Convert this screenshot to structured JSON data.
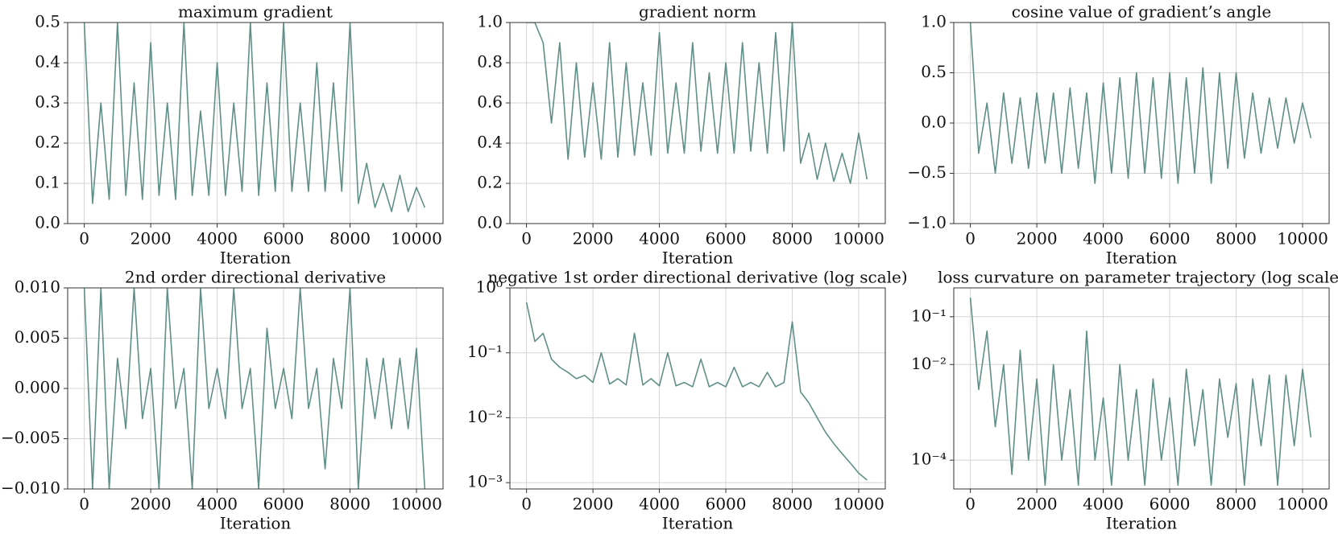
{
  "chart_data": [
    {
      "type": "line",
      "title": "maximum gradient",
      "x_label": "Iteration",
      "color": "#5f8f87",
      "grid": true,
      "xlim": [
        -500,
        10800
      ],
      "xticks": [
        0,
        2000,
        4000,
        6000,
        8000,
        10000
      ],
      "ylim": [
        0,
        0.5
      ],
      "yticks": [
        {
          "value": 0,
          "label": "0.0"
        },
        0.1,
        0.2,
        0.3,
        0.4,
        0.5
      ],
      "x": [
        0,
        250,
        500,
        750,
        1000,
        1250,
        1500,
        1750,
        2000,
        2250,
        2500,
        2750,
        3000,
        3250,
        3500,
        3750,
        4000,
        4250,
        4500,
        4750,
        5000,
        5250,
        5500,
        5750,
        6000,
        6250,
        6500,
        6750,
        7000,
        7250,
        7500,
        7750,
        8000,
        8250,
        8500,
        8750,
        9000,
        9250,
        9500,
        9750,
        10000,
        10250
      ],
      "values": [
        0.5,
        0.05,
        0.3,
        0.06,
        0.5,
        0.07,
        0.35,
        0.06,
        0.45,
        0.07,
        0.3,
        0.06,
        0.5,
        0.07,
        0.28,
        0.07,
        0.4,
        0.07,
        0.3,
        0.08,
        0.5,
        0.07,
        0.35,
        0.08,
        0.5,
        0.08,
        0.3,
        0.08,
        0.4,
        0.08,
        0.35,
        0.08,
        0.5,
        0.05,
        0.15,
        0.04,
        0.1,
        0.03,
        0.12,
        0.03,
        0.09,
        0.04
      ]
    },
    {
      "type": "line",
      "title": "gradient norm",
      "x_label": "Iteration",
      "color": "#5f8f87",
      "grid": true,
      "xlim": [
        -500,
        10800
      ],
      "xticks": [
        0,
        2000,
        4000,
        6000,
        8000,
        10000
      ],
      "ylim": [
        0,
        1
      ],
      "yticks": [
        {
          "value": 0,
          "label": "0.0"
        },
        0.2,
        0.4,
        0.6,
        0.8,
        {
          "value": 1,
          "label": "1.0"
        }
      ],
      "x": [
        0,
        250,
        500,
        750,
        1000,
        1250,
        1500,
        1750,
        2000,
        2250,
        2500,
        2750,
        3000,
        3250,
        3500,
        3750,
        4000,
        4250,
        4500,
        4750,
        5000,
        5250,
        5500,
        5750,
        6000,
        6250,
        6500,
        6750,
        7000,
        7250,
        7500,
        7750,
        8000,
        8250,
        8500,
        8750,
        9000,
        9250,
        9500,
        9750,
        10000,
        10250
      ],
      "values": [
        1,
        1,
        0.9,
        0.5,
        0.9,
        0.32,
        0.8,
        0.33,
        0.7,
        0.32,
        0.9,
        0.33,
        0.8,
        0.34,
        0.7,
        0.34,
        0.95,
        0.35,
        0.7,
        0.35,
        0.9,
        0.36,
        0.75,
        0.35,
        0.8,
        0.35,
        0.9,
        0.36,
        0.8,
        0.35,
        0.95,
        0.36,
        1,
        0.3,
        0.45,
        0.22,
        0.4,
        0.21,
        0.35,
        0.2,
        0.45,
        0.22
      ]
    },
    {
      "type": "line",
      "title": "cosine value of gradient’s angle",
      "x_label": "Iteration",
      "color": "#5f8f87",
      "grid": true,
      "xlim": [
        -500,
        10800
      ],
      "xticks": [
        0,
        2000,
        4000,
        6000,
        8000,
        10000
      ],
      "ylim": [
        -1,
        1
      ],
      "yticks": [
        {
          "value": -1,
          "label": "−1.0"
        },
        {
          "value": -0.5,
          "label": "−0.5"
        },
        {
          "value": 0,
          "label": "0.0"
        },
        0.5,
        {
          "value": 1,
          "label": "1.0"
        }
      ],
      "x": [
        0,
        250,
        500,
        750,
        1000,
        1250,
        1500,
        1750,
        2000,
        2250,
        2500,
        2750,
        3000,
        3250,
        3500,
        3750,
        4000,
        4250,
        4500,
        4750,
        5000,
        5250,
        5500,
        5750,
        6000,
        6250,
        6500,
        6750,
        7000,
        7250,
        7500,
        7750,
        8000,
        8250,
        8500,
        8750,
        9000,
        9250,
        9500,
        9750,
        10000,
        10250
      ],
      "values": [
        1,
        -0.3,
        0.2,
        -0.5,
        0.3,
        -0.4,
        0.25,
        -0.45,
        0.3,
        -0.4,
        0.3,
        -0.5,
        0.35,
        -0.45,
        0.3,
        -0.6,
        0.4,
        -0.5,
        0.45,
        -0.55,
        0.5,
        -0.5,
        0.45,
        -0.55,
        0.5,
        -0.6,
        0.45,
        -0.5,
        0.55,
        -0.6,
        0.5,
        -0.45,
        0.5,
        -0.35,
        0.3,
        -0.3,
        0.25,
        -0.25,
        0.25,
        -0.2,
        0.2,
        -0.15
      ]
    },
    {
      "type": "line",
      "title": "2nd order directional derivative",
      "x_label": "Iteration",
      "color": "#5f8f87",
      "grid": true,
      "xlim": [
        -500,
        10800
      ],
      "xticks": [
        0,
        2000,
        4000,
        6000,
        8000,
        10000
      ],
      "ylim": [
        -0.01,
        0.01
      ],
      "yticks": [
        {
          "value": -0.01,
          "label": "−0.010"
        },
        {
          "value": -0.005,
          "label": "−0.005"
        },
        {
          "value": 0,
          "label": "0.000"
        },
        0.005,
        {
          "value": 0.01,
          "label": "0.010"
        }
      ],
      "x": [
        0,
        250,
        500,
        750,
        1000,
        1250,
        1500,
        1750,
        2000,
        2250,
        2500,
        2750,
        3000,
        3250,
        3500,
        3750,
        4000,
        4250,
        4500,
        4750,
        5000,
        5250,
        5500,
        5750,
        6000,
        6250,
        6500,
        6750,
        7000,
        7250,
        7500,
        7750,
        8000,
        8250,
        8500,
        8750,
        9000,
        9250,
        9500,
        9750,
        10000,
        10250
      ],
      "values": [
        0.01,
        -0.01,
        0.01,
        -0.01,
        0.003,
        -0.004,
        0.01,
        -0.003,
        0.002,
        -0.01,
        0.01,
        -0.002,
        0.002,
        -0.01,
        0.01,
        -0.002,
        0.002,
        -0.003,
        0.01,
        -0.002,
        0.002,
        -0.01,
        0.006,
        -0.002,
        0.002,
        -0.003,
        0.01,
        -0.002,
        0.002,
        -0.008,
        0.003,
        -0.002,
        0.01,
        -0.01,
        0.003,
        -0.003,
        0.003,
        -0.004,
        0.003,
        -0.004,
        0.004,
        -0.01
      ]
    },
    {
      "type": "line",
      "title": "negative 1st order directional derivative (log scale)",
      "x_label": "Iteration",
      "color": "#5f8f87",
      "grid": true,
      "yscale": "log",
      "xlim": [
        -500,
        10800
      ],
      "xticks": [
        0,
        2000,
        4000,
        6000,
        8000,
        10000
      ],
      "ylim": [
        0.0008,
        1
      ],
      "yticks": [
        {
          "value": 0.001,
          "label": "10⁻³"
        },
        {
          "value": 0.01,
          "label": "10⁻²"
        },
        {
          "value": 0.1,
          "label": "10⁻¹"
        },
        {
          "value": 1,
          "label": "10⁰"
        }
      ],
      "x": [
        0,
        250,
        500,
        750,
        1000,
        1250,
        1500,
        1750,
        2000,
        2250,
        2500,
        2750,
        3000,
        3250,
        3500,
        3750,
        4000,
        4250,
        4500,
        4750,
        5000,
        5250,
        5500,
        5750,
        6000,
        6250,
        6500,
        6750,
        7000,
        7250,
        7500,
        7750,
        8000,
        8250,
        8500,
        8750,
        9000,
        9250,
        9500,
        9750,
        10000,
        10250
      ],
      "values": [
        0.6,
        0.15,
        0.2,
        0.08,
        0.06,
        0.05,
        0.04,
        0.045,
        0.035,
        0.1,
        0.033,
        0.04,
        0.032,
        0.2,
        0.032,
        0.04,
        0.031,
        0.1,
        0.031,
        0.035,
        0.03,
        0.08,
        0.03,
        0.035,
        0.03,
        0.06,
        0.03,
        0.035,
        0.03,
        0.05,
        0.03,
        0.035,
        0.3,
        0.025,
        0.017,
        0.01,
        0.006,
        0.004,
        0.0028,
        0.002,
        0.0014,
        0.0011
      ]
    },
    {
      "type": "line",
      "title": "loss curvature on parameter trajectory (log scale)",
      "x_label": "Iteration",
      "color": "#5f8f87",
      "grid": true,
      "yscale": "log",
      "xlim": [
        -500,
        10800
      ],
      "xticks": [
        0,
        2000,
        4000,
        6000,
        8000,
        10000
      ],
      "ylim": [
        2.5e-05,
        0.4
      ],
      "yticks": [
        {
          "value": 0.0001,
          "label": "10⁻⁴"
        },
        {
          "value": 0.01,
          "label": "10⁻²"
        },
        {
          "value": 0.1,
          "label": "10⁻¹"
        }
      ],
      "x": [
        0,
        250,
        500,
        750,
        1000,
        1250,
        1500,
        1750,
        2000,
        2250,
        2500,
        2750,
        3000,
        3250,
        3500,
        3750,
        4000,
        4250,
        4500,
        4750,
        5000,
        5250,
        5500,
        5750,
        6000,
        6250,
        6500,
        6750,
        7000,
        7250,
        7500,
        7750,
        8000,
        8250,
        8500,
        8750,
        9000,
        9250,
        9500,
        9750,
        10000,
        10250
      ],
      "values": [
        0.25,
        0.003,
        0.05,
        0.0005,
        0.01,
        5e-05,
        0.02,
        0.0001,
        0.005,
        3e-05,
        0.01,
        0.0001,
        0.003,
        3e-05,
        0.05,
        0.0001,
        0.002,
        3e-05,
        0.01,
        0.0001,
        0.003,
        3e-05,
        0.005,
        0.0001,
        0.002,
        3e-05,
        0.008,
        0.0002,
        0.003,
        3e-05,
        0.005,
        0.0003,
        0.004,
        3e-05,
        0.005,
        0.0002,
        0.006,
        3e-05,
        0.006,
        0.0002,
        0.008,
        0.0003
      ]
    }
  ]
}
